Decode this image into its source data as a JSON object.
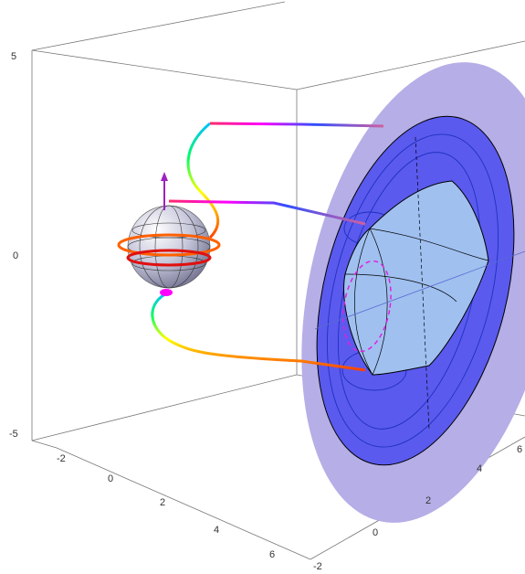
{
  "axes": {
    "vertical": {
      "ticks": [
        5,
        0,
        -5
      ]
    },
    "front": {
      "ticks": [
        -2,
        0,
        2,
        4,
        6
      ]
    },
    "right": {
      "ticks": [
        -2,
        0,
        2,
        4,
        6
      ]
    }
  }
}
